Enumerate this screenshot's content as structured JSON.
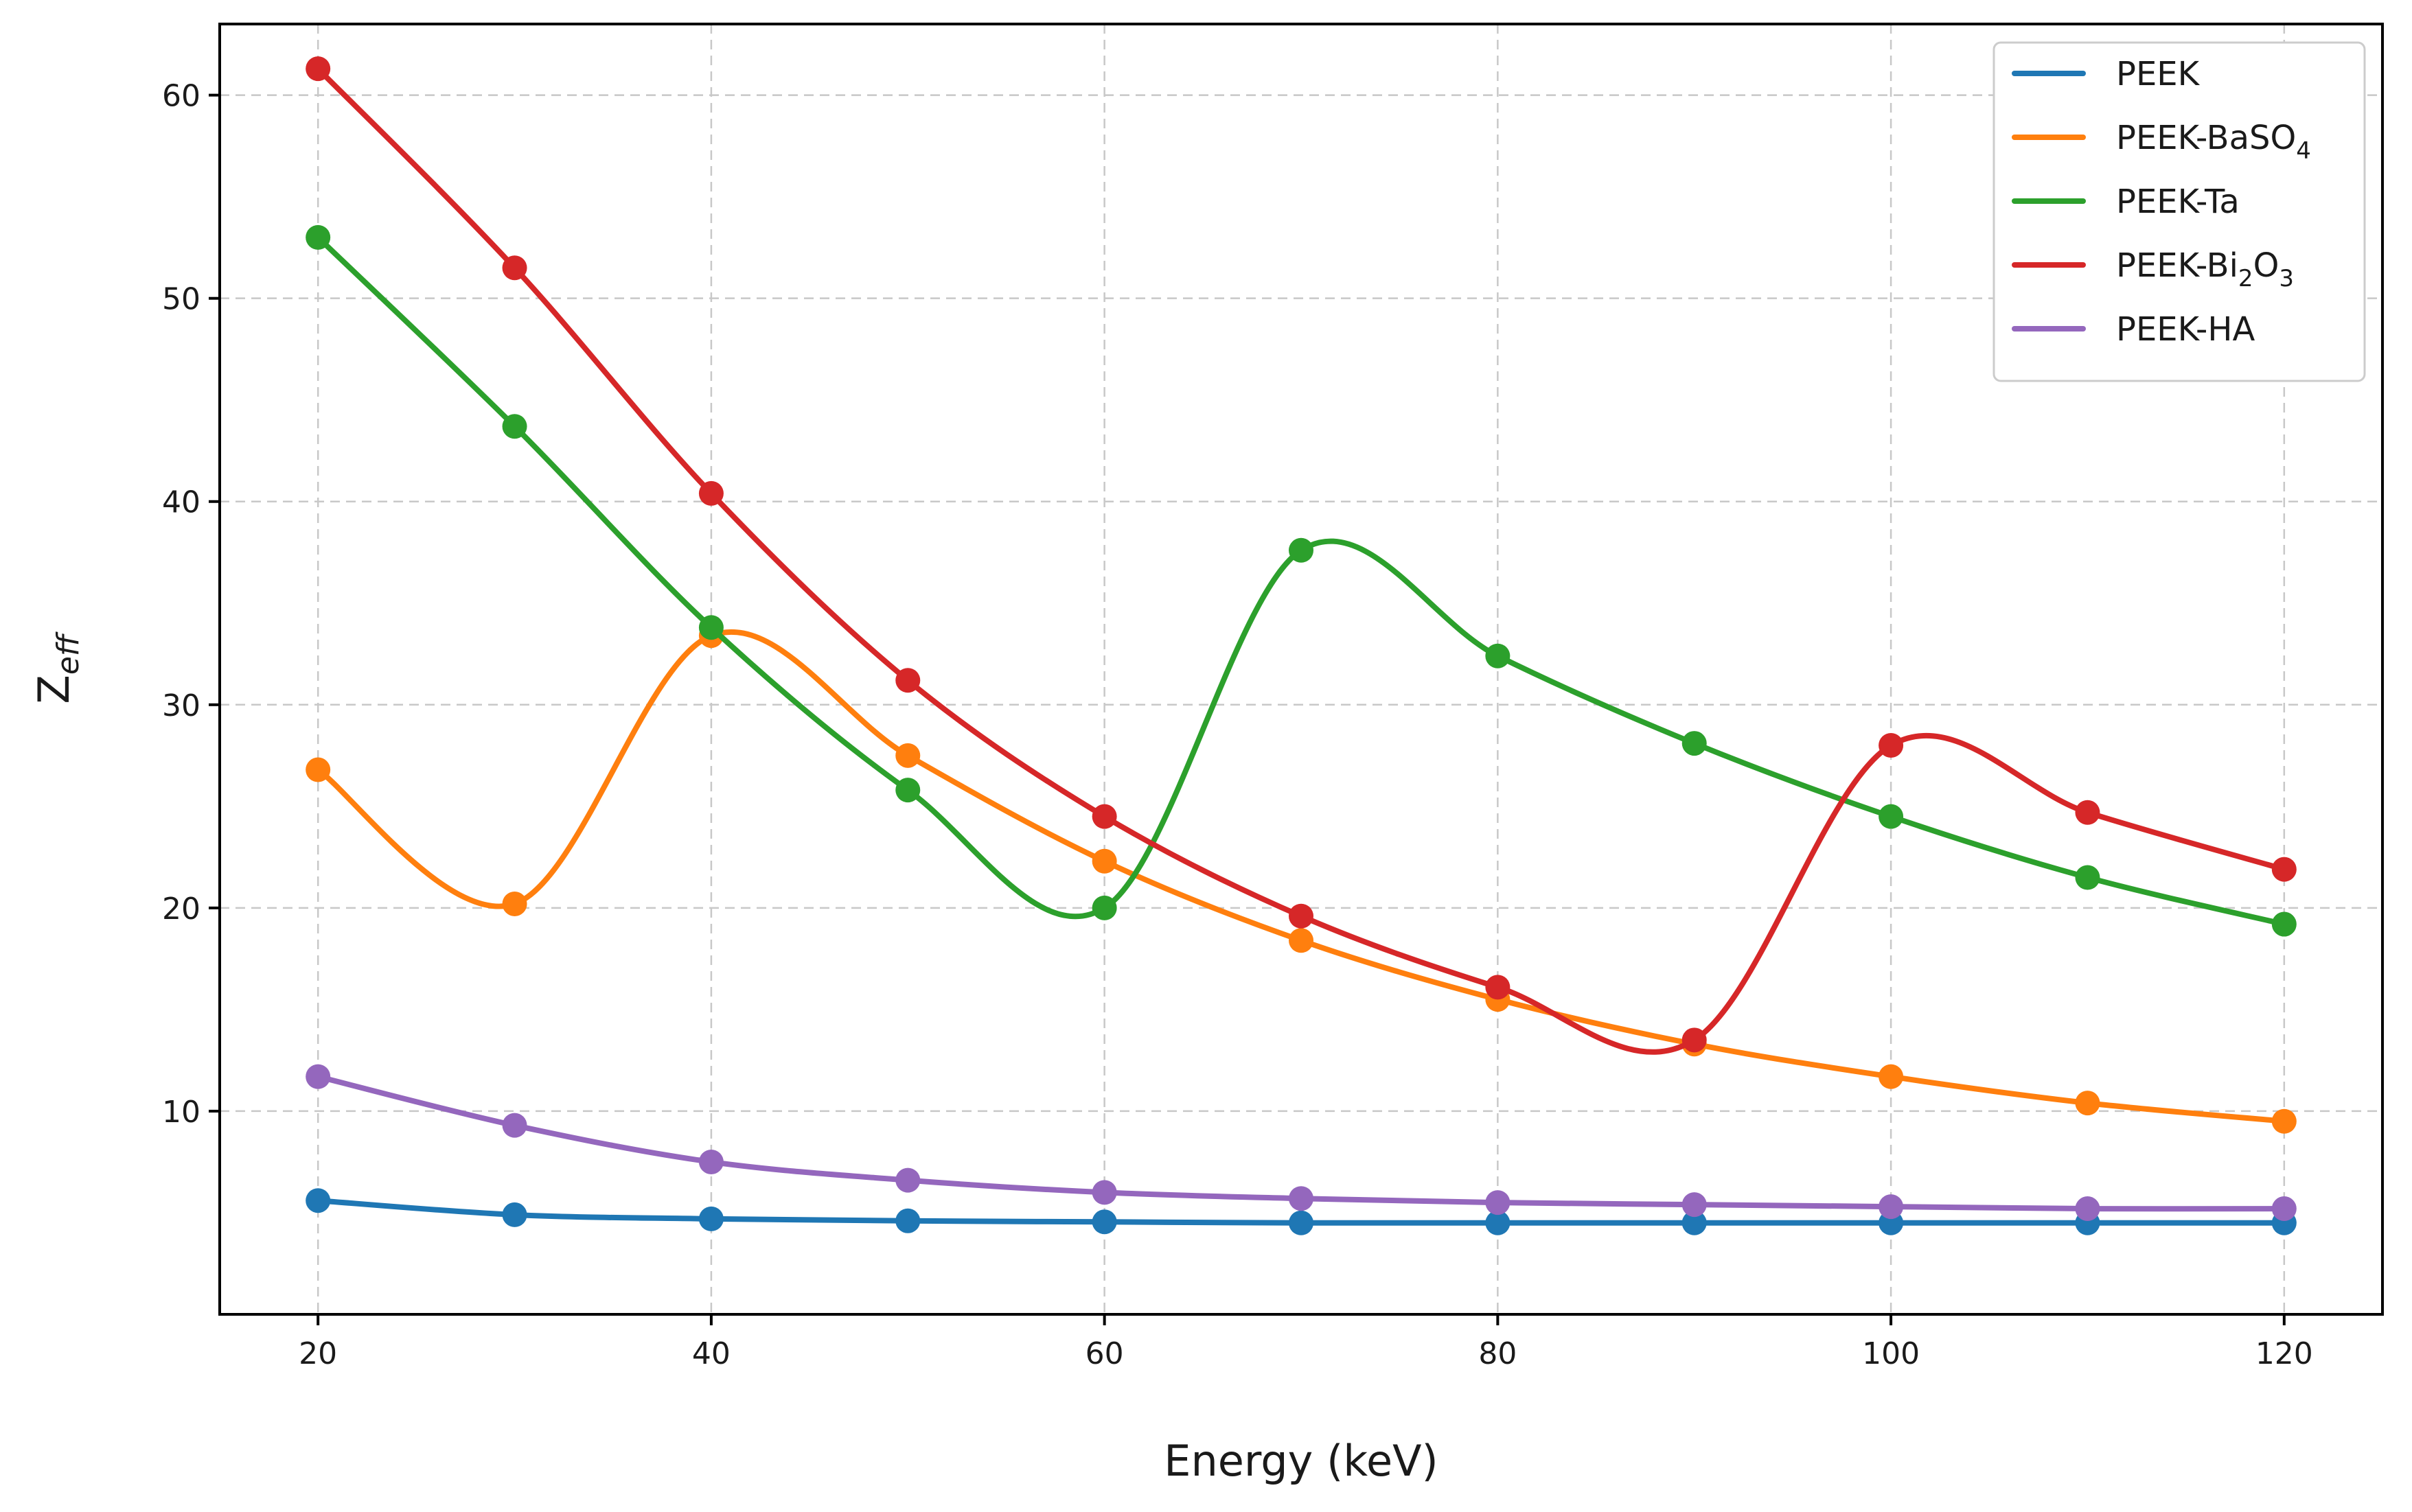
{
  "chart_data": {
    "type": "line",
    "title": "",
    "xlabel": "Energy (keV)",
    "ylabel": {
      "base": "Z",
      "sub": "eff"
    },
    "x": [
      20,
      30,
      40,
      50,
      60,
      70,
      80,
      90,
      100,
      110,
      120
    ],
    "xlim": [
      15,
      125
    ],
    "ylim": [
      0,
      63.5
    ],
    "xticks": [
      20,
      40,
      60,
      80,
      100,
      120
    ],
    "yticks": [
      10,
      20,
      30,
      40,
      50,
      60
    ],
    "grid": true,
    "legend_position": "top-right",
    "series": [
      {
        "name": "PEEK",
        "legend": [
          {
            "t": "PEEK"
          }
        ],
        "color": "#1f77b4",
        "values": [
          5.6,
          4.9,
          4.7,
          4.6,
          4.55,
          4.5,
          4.5,
          4.5,
          4.5,
          4.5,
          4.5
        ]
      },
      {
        "name": "PEEK-BaSO4",
        "legend": [
          {
            "t": "PEEK-BaSO"
          },
          {
            "t": "4",
            "sub": true
          }
        ],
        "color": "#ff7f0e",
        "values": [
          26.8,
          20.2,
          33.4,
          27.5,
          22.3,
          18.4,
          15.5,
          13.3,
          11.7,
          10.4,
          9.5
        ]
      },
      {
        "name": "PEEK-Ta",
        "legend": [
          {
            "t": "PEEK-Ta"
          }
        ],
        "color": "#2ca02c",
        "values": [
          53.0,
          43.7,
          33.8,
          25.8,
          20.0,
          37.6,
          32.4,
          28.1,
          24.5,
          21.5,
          19.2
        ]
      },
      {
        "name": "PEEK-Bi2O3",
        "legend": [
          {
            "t": "PEEK-Bi"
          },
          {
            "t": "2",
            "sub": true
          },
          {
            "t": "O"
          },
          {
            "t": "3",
            "sub": true
          }
        ],
        "color": "#d62728",
        "values": [
          61.3,
          51.5,
          40.4,
          31.2,
          24.5,
          19.6,
          16.1,
          13.5,
          28.0,
          24.7,
          21.9
        ]
      },
      {
        "name": "PEEK-HA",
        "legend": [
          {
            "t": "PEEK-HA"
          }
        ],
        "color": "#9467bd",
        "values": [
          11.7,
          9.3,
          7.5,
          6.6,
          6.0,
          5.7,
          5.5,
          5.4,
          5.3,
          5.2,
          5.2
        ]
      }
    ]
  }
}
